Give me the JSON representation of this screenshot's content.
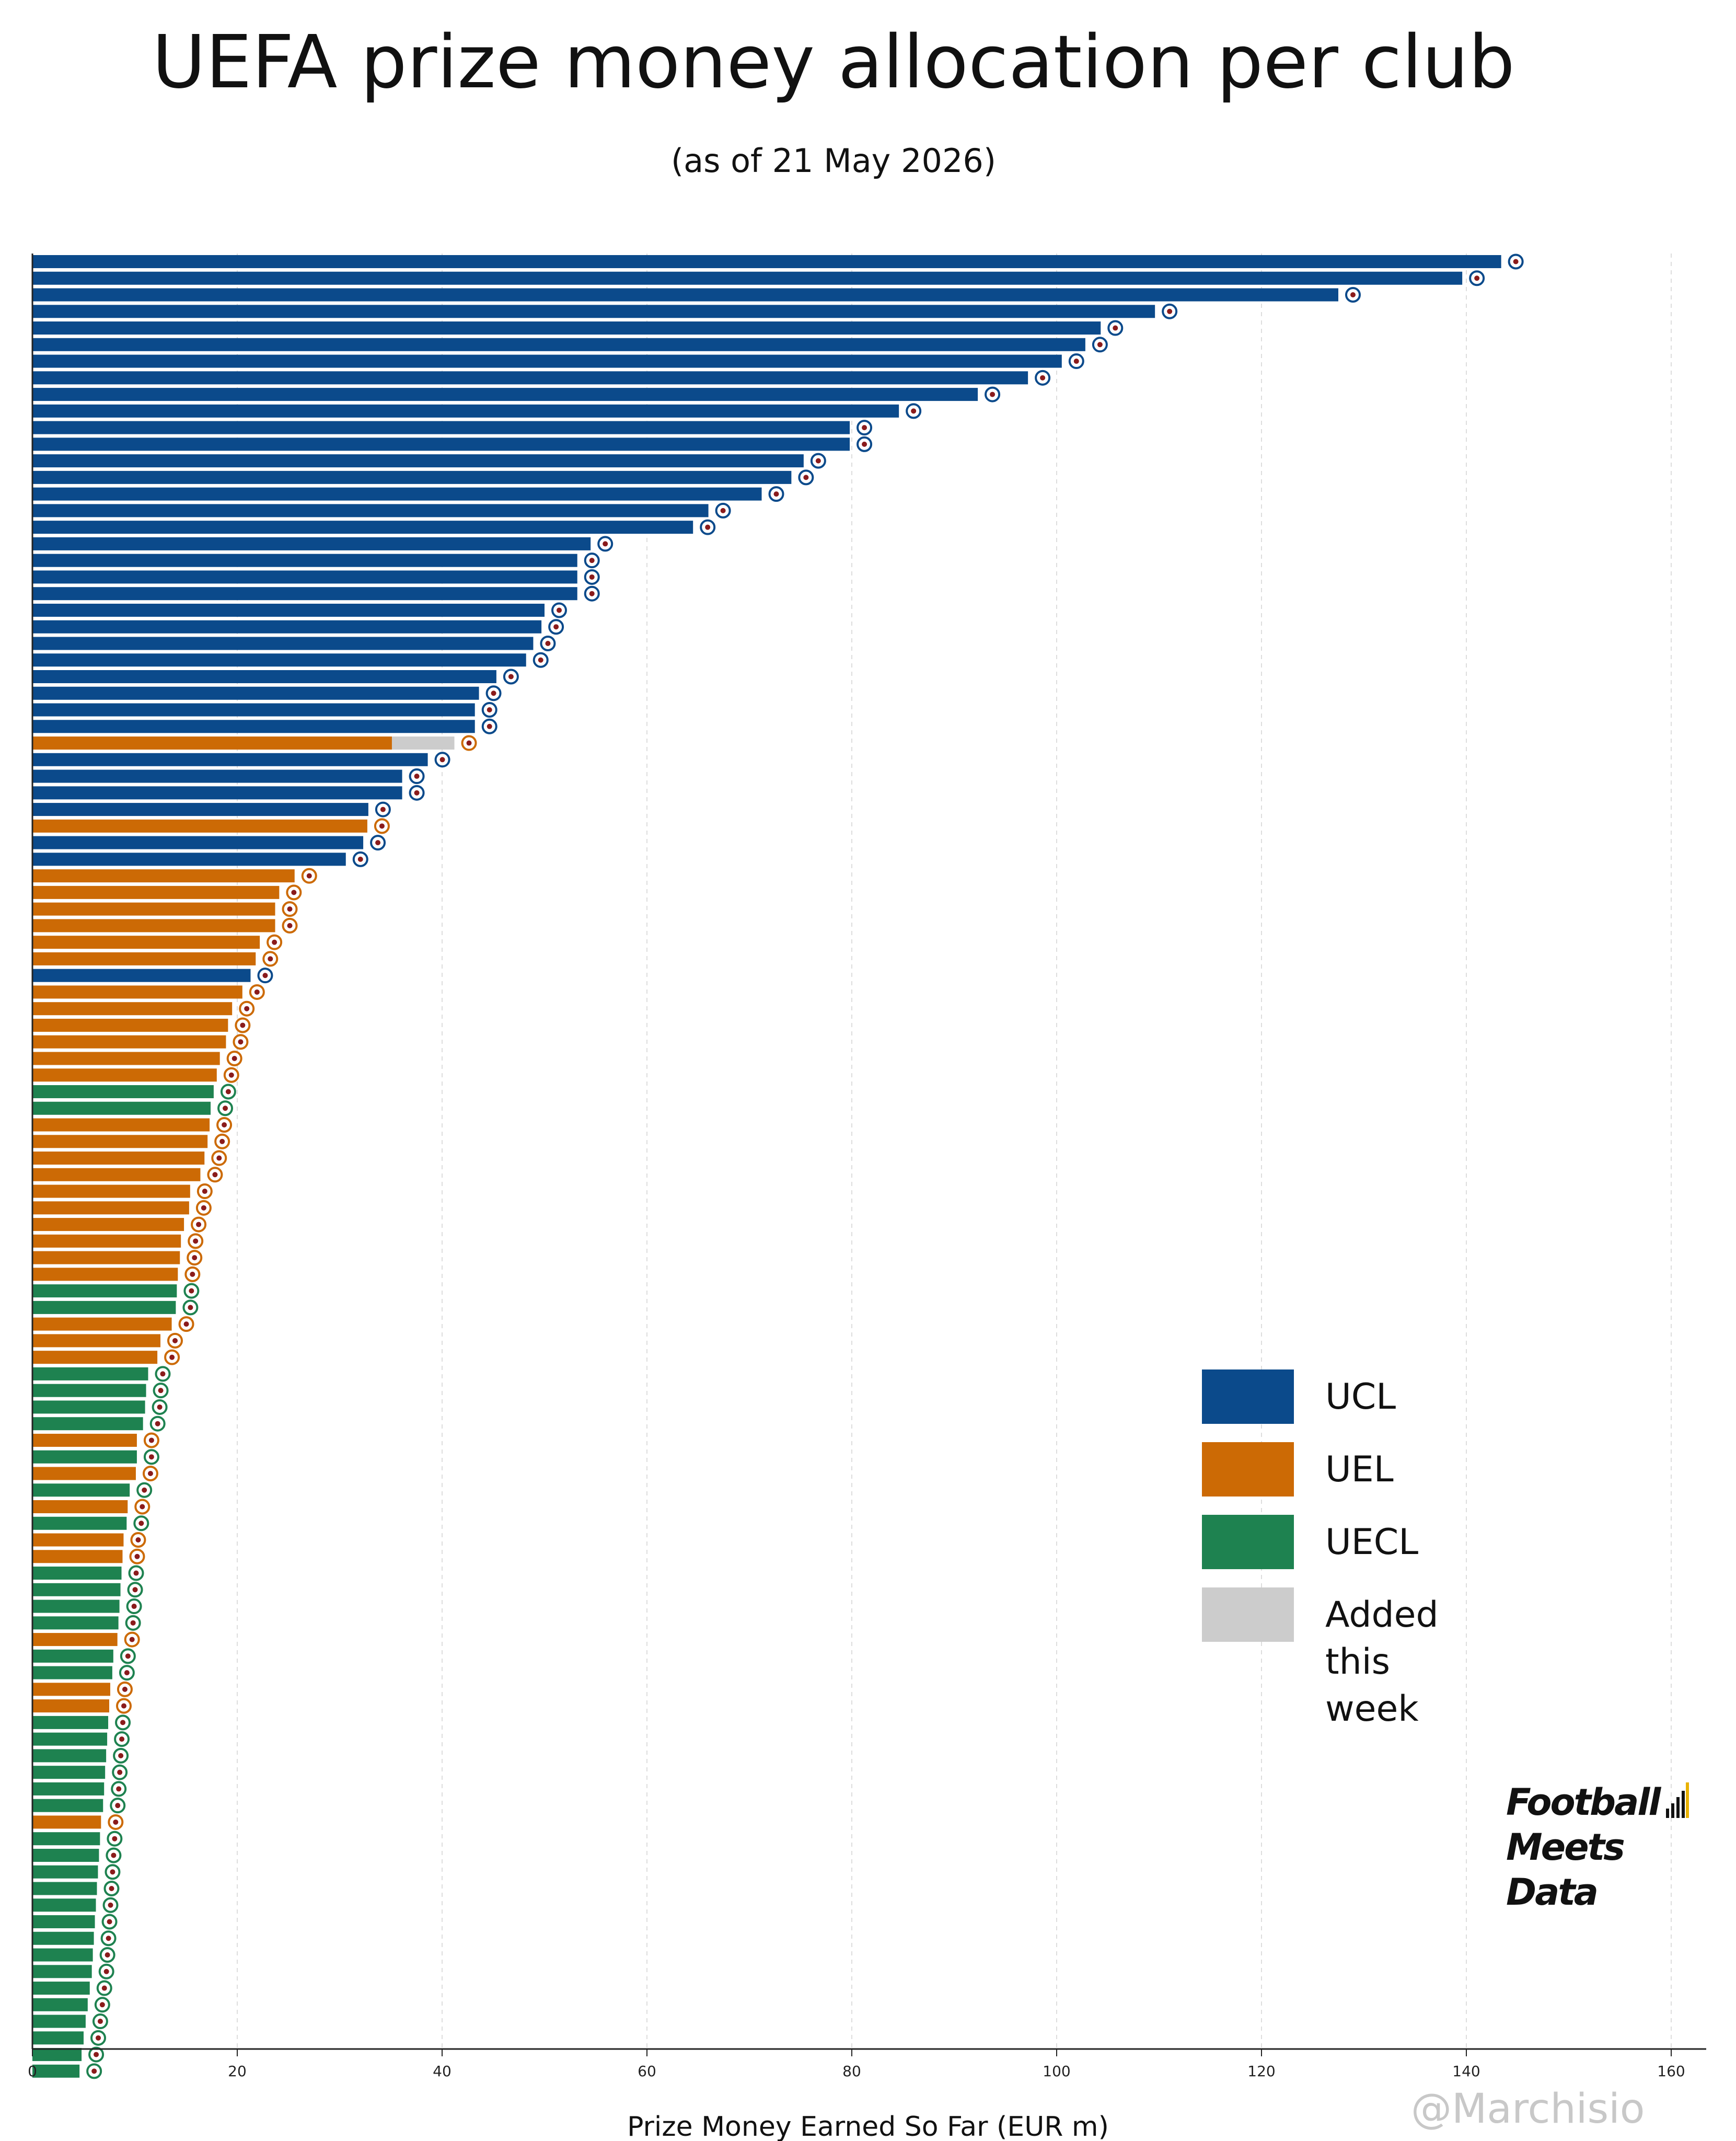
{
  "title": "UEFA prize money allocation per club",
  "subtitle": "(as of 21 May 2026)",
  "legend": [
    {
      "label": "UCL",
      "color": "#0b4a8b"
    },
    {
      "label": "UEL",
      "color": "#cc6a05"
    },
    {
      "label": "UECL",
      "color": "#1e8250"
    },
    {
      "label": "Added this week",
      "color": "#cccccc"
    }
  ],
  "brand": {
    "line1": "Football",
    "line2": "Meets",
    "line3": "Data"
  },
  "watermark": "@Marchisio",
  "chart_data": {
    "type": "bar",
    "orientation": "horizontal",
    "stacked": true,
    "xlabel": "Prize Money Earned So Far (EUR m)",
    "ylabel": "",
    "xlim": [
      0,
      163
    ],
    "xticks": [
      0,
      20,
      40,
      60,
      80,
      100,
      120,
      140,
      160
    ],
    "grid": "vertical dashed",
    "legend_position": "lower-right",
    "colors": {
      "UCL": "#0b4a8b",
      "UEL": "#cc6a05",
      "UECL": "#1e8250",
      "Added this week": "#cccccc"
    },
    "bars": [
      {
        "comp": "UCL",
        "value": 143.4,
        "added": 0
      },
      {
        "comp": "UCL",
        "value": 139.6,
        "added": 0
      },
      {
        "comp": "UCL",
        "value": 127.5,
        "added": 0
      },
      {
        "comp": "UCL",
        "value": 109.6,
        "added": 0
      },
      {
        "comp": "UCL",
        "value": 104.3,
        "added": 0
      },
      {
        "comp": "UCL",
        "value": 102.8,
        "added": 0
      },
      {
        "comp": "UCL",
        "value": 100.5,
        "added": 0
      },
      {
        "comp": "UCL",
        "value": 97.2,
        "added": 0
      },
      {
        "comp": "UCL",
        "value": 92.3,
        "added": 0
      },
      {
        "comp": "UCL",
        "value": 84.6,
        "added": 0
      },
      {
        "comp": "UCL",
        "value": 79.8,
        "added": 0
      },
      {
        "comp": "UCL",
        "value": 79.8,
        "added": 0
      },
      {
        "comp": "UCL",
        "value": 75.3,
        "added": 0
      },
      {
        "comp": "UCL",
        "value": 74.1,
        "added": 0
      },
      {
        "comp": "UCL",
        "value": 71.2,
        "added": 0
      },
      {
        "comp": "UCL",
        "value": 66.0,
        "added": 0
      },
      {
        "comp": "UCL",
        "value": 64.5,
        "added": 0
      },
      {
        "comp": "UCL",
        "value": 54.5,
        "added": 0
      },
      {
        "comp": "UCL",
        "value": 53.2,
        "added": 0
      },
      {
        "comp": "UCL",
        "value": 53.2,
        "added": 0
      },
      {
        "comp": "UCL",
        "value": 53.2,
        "added": 0
      },
      {
        "comp": "UCL",
        "value": 50.0,
        "added": 0
      },
      {
        "comp": "UCL",
        "value": 49.7,
        "added": 0
      },
      {
        "comp": "UCL",
        "value": 48.9,
        "added": 0
      },
      {
        "comp": "UCL",
        "value": 48.2,
        "added": 0
      },
      {
        "comp": "UCL",
        "value": 45.3,
        "added": 0
      },
      {
        "comp": "UCL",
        "value": 43.6,
        "added": 0
      },
      {
        "comp": "UCL",
        "value": 43.2,
        "added": 0
      },
      {
        "comp": "UCL",
        "value": 43.2,
        "added": 0
      },
      {
        "comp": "UEL",
        "value": 35.1,
        "added": 6.1
      },
      {
        "comp": "UCL",
        "value": 38.6,
        "added": 0
      },
      {
        "comp": "UCL",
        "value": 36.1,
        "added": 0
      },
      {
        "comp": "UCL",
        "value": 36.1,
        "added": 0
      },
      {
        "comp": "UCL",
        "value": 32.8,
        "added": 0
      },
      {
        "comp": "UEL",
        "value": 32.7,
        "added": 0
      },
      {
        "comp": "UCL",
        "value": 32.3,
        "added": 0
      },
      {
        "comp": "UCL",
        "value": 30.6,
        "added": 0
      },
      {
        "comp": "UEL",
        "value": 25.6,
        "added": 0
      },
      {
        "comp": "UEL",
        "value": 24.1,
        "added": 0
      },
      {
        "comp": "UEL",
        "value": 23.7,
        "added": 0
      },
      {
        "comp": "UEL",
        "value": 23.7,
        "added": 0
      },
      {
        "comp": "UEL",
        "value": 22.2,
        "added": 0
      },
      {
        "comp": "UEL",
        "value": 21.8,
        "added": 0
      },
      {
        "comp": "UCL",
        "value": 21.3,
        "added": 0
      },
      {
        "comp": "UEL",
        "value": 20.5,
        "added": 0
      },
      {
        "comp": "UEL",
        "value": 19.5,
        "added": 0
      },
      {
        "comp": "UEL",
        "value": 19.1,
        "added": 0
      },
      {
        "comp": "UEL",
        "value": 18.9,
        "added": 0
      },
      {
        "comp": "UEL",
        "value": 18.3,
        "added": 0
      },
      {
        "comp": "UEL",
        "value": 18.0,
        "added": 0
      },
      {
        "comp": "UECL",
        "value": 17.7,
        "added": 0
      },
      {
        "comp": "UECL",
        "value": 17.4,
        "added": 0
      },
      {
        "comp": "UEL",
        "value": 17.3,
        "added": 0
      },
      {
        "comp": "UEL",
        "value": 17.1,
        "added": 0
      },
      {
        "comp": "UEL",
        "value": 16.8,
        "added": 0
      },
      {
        "comp": "UEL",
        "value": 16.4,
        "added": 0
      },
      {
        "comp": "UEL",
        "value": 15.4,
        "added": 0
      },
      {
        "comp": "UEL",
        "value": 15.3,
        "added": 0
      },
      {
        "comp": "UEL",
        "value": 14.8,
        "added": 0
      },
      {
        "comp": "UEL",
        "value": 14.5,
        "added": 0
      },
      {
        "comp": "UEL",
        "value": 14.4,
        "added": 0
      },
      {
        "comp": "UEL",
        "value": 14.2,
        "added": 0
      },
      {
        "comp": "UECL",
        "value": 14.1,
        "added": 0
      },
      {
        "comp": "UECL",
        "value": 14.0,
        "added": 0
      },
      {
        "comp": "UEL",
        "value": 13.6,
        "added": 0
      },
      {
        "comp": "UEL",
        "value": 12.5,
        "added": 0
      },
      {
        "comp": "UEL",
        "value": 12.2,
        "added": 0
      },
      {
        "comp": "UECL",
        "value": 11.3,
        "added": 0
      },
      {
        "comp": "UECL",
        "value": 11.1,
        "added": 0
      },
      {
        "comp": "UECL",
        "value": 11.0,
        "added": 0
      },
      {
        "comp": "UECL",
        "value": 10.8,
        "added": 0
      },
      {
        "comp": "UEL",
        "value": 10.2,
        "added": 0
      },
      {
        "comp": "UECL",
        "value": 10.2,
        "added": 0
      },
      {
        "comp": "UEL",
        "value": 10.1,
        "added": 0
      },
      {
        "comp": "UECL",
        "value": 9.5,
        "added": 0
      },
      {
        "comp": "UEL",
        "value": 9.3,
        "added": 0
      },
      {
        "comp": "UECL",
        "value": 9.2,
        "added": 0
      },
      {
        "comp": "UEL",
        "value": 8.9,
        "added": 0
      },
      {
        "comp": "UEL",
        "value": 8.8,
        "added": 0
      },
      {
        "comp": "UECL",
        "value": 8.7,
        "added": 0
      },
      {
        "comp": "UECL",
        "value": 8.6,
        "added": 0
      },
      {
        "comp": "UECL",
        "value": 8.5,
        "added": 0
      },
      {
        "comp": "UECL",
        "value": 8.4,
        "added": 0
      },
      {
        "comp": "UEL",
        "value": 8.3,
        "added": 0
      },
      {
        "comp": "UECL",
        "value": 7.9,
        "added": 0
      },
      {
        "comp": "UECL",
        "value": 7.8,
        "added": 0
      },
      {
        "comp": "UEL",
        "value": 7.6,
        "added": 0
      },
      {
        "comp": "UEL",
        "value": 7.5,
        "added": 0
      },
      {
        "comp": "UECL",
        "value": 7.4,
        "added": 0
      },
      {
        "comp": "UECL",
        "value": 7.3,
        "added": 0
      },
      {
        "comp": "UECL",
        "value": 7.2,
        "added": 0
      },
      {
        "comp": "UECL",
        "value": 7.1,
        "added": 0
      },
      {
        "comp": "UECL",
        "value": 7.0,
        "added": 0
      },
      {
        "comp": "UECL",
        "value": 6.9,
        "added": 0
      },
      {
        "comp": "UEL",
        "value": 6.7,
        "added": 0
      },
      {
        "comp": "UECL",
        "value": 6.6,
        "added": 0
      },
      {
        "comp": "UECL",
        "value": 6.5,
        "added": 0
      },
      {
        "comp": "UECL",
        "value": 6.4,
        "added": 0
      },
      {
        "comp": "UECL",
        "value": 6.3,
        "added": 0
      },
      {
        "comp": "UECL",
        "value": 6.2,
        "added": 0
      },
      {
        "comp": "UECL",
        "value": 6.1,
        "added": 0
      },
      {
        "comp": "UECL",
        "value": 6.0,
        "added": 0
      },
      {
        "comp": "UECL",
        "value": 5.9,
        "added": 0
      },
      {
        "comp": "UECL",
        "value": 5.8,
        "added": 0
      },
      {
        "comp": "UECL",
        "value": 5.6,
        "added": 0
      },
      {
        "comp": "UECL",
        "value": 5.4,
        "added": 0
      },
      {
        "comp": "UECL",
        "value": 5.2,
        "added": 0
      },
      {
        "comp": "UECL",
        "value": 5.0,
        "added": 0
      },
      {
        "comp": "UECL",
        "value": 4.8,
        "added": 0
      },
      {
        "comp": "UECL",
        "value": 4.6,
        "added": 0
      }
    ]
  }
}
